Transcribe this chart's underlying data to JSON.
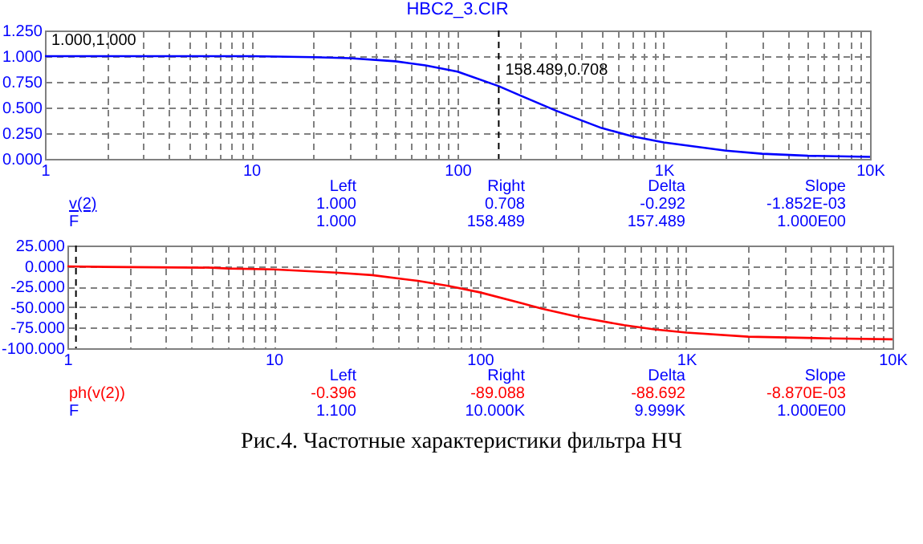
{
  "chart_data": [
    {
      "type": "line",
      "title": "HBC2_3.CIR",
      "log": "x",
      "grid": true,
      "marker": "none",
      "line_style": "solid",
      "x": [
        1,
        10,
        20,
        30,
        50,
        70,
        100,
        158.489,
        200,
        300,
        500,
        700,
        1000,
        2000,
        3000,
        5000,
        10000
      ],
      "series": [
        {
          "color": "#0000ff",
          "values": [
            1.0,
            1.0,
            0.99,
            0.98,
            0.95,
            0.91,
            0.85,
            0.708,
            0.62,
            0.47,
            0.3,
            0.22,
            0.16,
            0.08,
            0.05,
            0.03,
            0.02
          ]
        }
      ],
      "xlim": [
        1,
        10000
      ],
      "xticks": [
        1,
        {
          "value": 2,
          "label": null
        },
        {
          "value": 3,
          "label": null
        },
        {
          "value": 4,
          "label": null
        },
        {
          "value": 5,
          "label": null
        },
        {
          "value": 6,
          "label": null
        },
        {
          "value": 7,
          "label": null
        },
        {
          "value": 8,
          "label": null
        },
        {
          "value": 9,
          "label": null
        },
        10,
        {
          "value": 20,
          "label": null
        },
        {
          "value": 30,
          "label": null
        },
        {
          "value": 40,
          "label": null
        },
        {
          "value": 50,
          "label": null
        },
        {
          "value": 60,
          "label": null
        },
        {
          "value": 70,
          "label": null
        },
        {
          "value": 80,
          "label": null
        },
        {
          "value": 90,
          "label": null
        },
        100,
        {
          "value": 200,
          "label": null
        },
        {
          "value": 300,
          "label": null
        },
        {
          "value": 400,
          "label": null
        },
        {
          "value": 500,
          "label": null
        },
        {
          "value": 600,
          "label": null
        },
        {
          "value": 700,
          "label": null
        },
        {
          "value": 800,
          "label": null
        },
        {
          "value": 900,
          "label": null
        },
        {
          "value": 1000,
          "label": "1K"
        },
        {
          "value": 2000,
          "label": null
        },
        {
          "value": 3000,
          "label": null
        },
        {
          "value": 4000,
          "label": null
        },
        {
          "value": 5000,
          "label": null
        },
        {
          "value": 6000,
          "label": null
        },
        {
          "value": 7000,
          "label": null
        },
        {
          "value": 8000,
          "label": null
        },
        {
          "value": 9000,
          "label": null
        },
        {
          "value": 10000,
          "label": "10K"
        }
      ],
      "ylim": [
        0,
        1.25
      ],
      "yticks": [
        {
          "value": 0,
          "label": "0.000"
        },
        {
          "value": 0.25,
          "label": "0.250"
        },
        {
          "value": 0.5,
          "label": "0.500"
        },
        {
          "value": 0.75,
          "label": "0.750"
        },
        {
          "value": 1,
          "label": "1.000"
        },
        {
          "value": 1.25,
          "label": "1.250"
        }
      ],
      "ref_lines": [
        {
          "axis": "x",
          "value": 158.489,
          "color": "#000000",
          "line_style": "dashed"
        }
      ],
      "annotations": [
        {
          "text": "1.000,1.000",
          "x": 1,
          "y": 1.0
        },
        {
          "text": "158.489,0.708",
          "x": 158.489,
          "y": 0.708
        },
        "Left Right Delta Slope",
        "v(2) 1.000 0.708 -0.292 -1.852E-03",
        "F 1.000 158.489 157.489 1.000E00"
      ]
    },
    {
      "type": "line",
      "log": "x",
      "grid": true,
      "marker": "none",
      "line_style": "solid",
      "x": [
        1,
        1.5,
        5,
        6,
        10,
        20,
        30,
        50,
        70,
        100,
        158.489,
        200,
        300,
        500,
        700,
        1000,
        2000,
        5000,
        10000
      ],
      "series": [
        {
          "color": "#ff0000",
          "values": [
            -0.396,
            -1,
            -2,
            -3,
            -4,
            -8,
            -11,
            -18,
            -24,
            -32,
            -45,
            -52,
            -62,
            -72,
            -77,
            -81,
            -86,
            -88,
            -89.088
          ]
        }
      ],
      "xlim": [
        1,
        10000
      ],
      "xticks": [
        1,
        {
          "value": 2,
          "label": null
        },
        {
          "value": 3,
          "label": null
        },
        {
          "value": 4,
          "label": null
        },
        {
          "value": 5,
          "label": null
        },
        {
          "value": 6,
          "label": null
        },
        {
          "value": 7,
          "label": null
        },
        {
          "value": 8,
          "label": null
        },
        {
          "value": 9,
          "label": null
        },
        10,
        {
          "value": 20,
          "label": null
        },
        {
          "value": 30,
          "label": null
        },
        {
          "value": 40,
          "label": null
        },
        {
          "value": 50,
          "label": null
        },
        {
          "value": 60,
          "label": null
        },
        {
          "value": 70,
          "label": null
        },
        {
          "value": 80,
          "label": null
        },
        {
          "value": 90,
          "label": null
        },
        100,
        {
          "value": 200,
          "label": null
        },
        {
          "value": 300,
          "label": null
        },
        {
          "value": 400,
          "label": null
        },
        {
          "value": 500,
          "label": null
        },
        {
          "value": 600,
          "label": null
        },
        {
          "value": 700,
          "label": null
        },
        {
          "value": 800,
          "label": null
        },
        {
          "value": 900,
          "label": null
        },
        {
          "value": 1000,
          "label": "1K"
        },
        {
          "value": 2000,
          "label": null
        },
        {
          "value": 3000,
          "label": null
        },
        {
          "value": 4000,
          "label": null
        },
        {
          "value": 5000,
          "label": null
        },
        {
          "value": 6000,
          "label": null
        },
        {
          "value": 7000,
          "label": null
        },
        {
          "value": 8000,
          "label": null
        },
        {
          "value": 9000,
          "label": null
        },
        {
          "value": 10000,
          "label": "10K"
        }
      ],
      "ylim": [
        -100,
        25
      ],
      "yticks": [
        {
          "value": -100,
          "label": "-100.000"
        },
        {
          "value": -75,
          "label": "-75.000"
        },
        {
          "value": -50,
          "label": "-50.000"
        },
        {
          "value": -25,
          "label": "-25.000"
        },
        {
          "value": 0,
          "label": "0.000"
        },
        {
          "value": 25,
          "label": "25.000"
        }
      ],
      "ref_lines": [
        {
          "axis": "x",
          "value": 1.1,
          "color": "#000000",
          "line_style": "dashed"
        }
      ],
      "annotations": [
        "Left Right Delta Slope",
        "ph(v(2)) -0.396 -89.088 -88.692 -8.870E-03",
        "F 1.100 10.000K 9.999K 1.000E00",
        "Рис.4. Частотные характеристики фильтра НЧ"
      ]
    }
  ]
}
